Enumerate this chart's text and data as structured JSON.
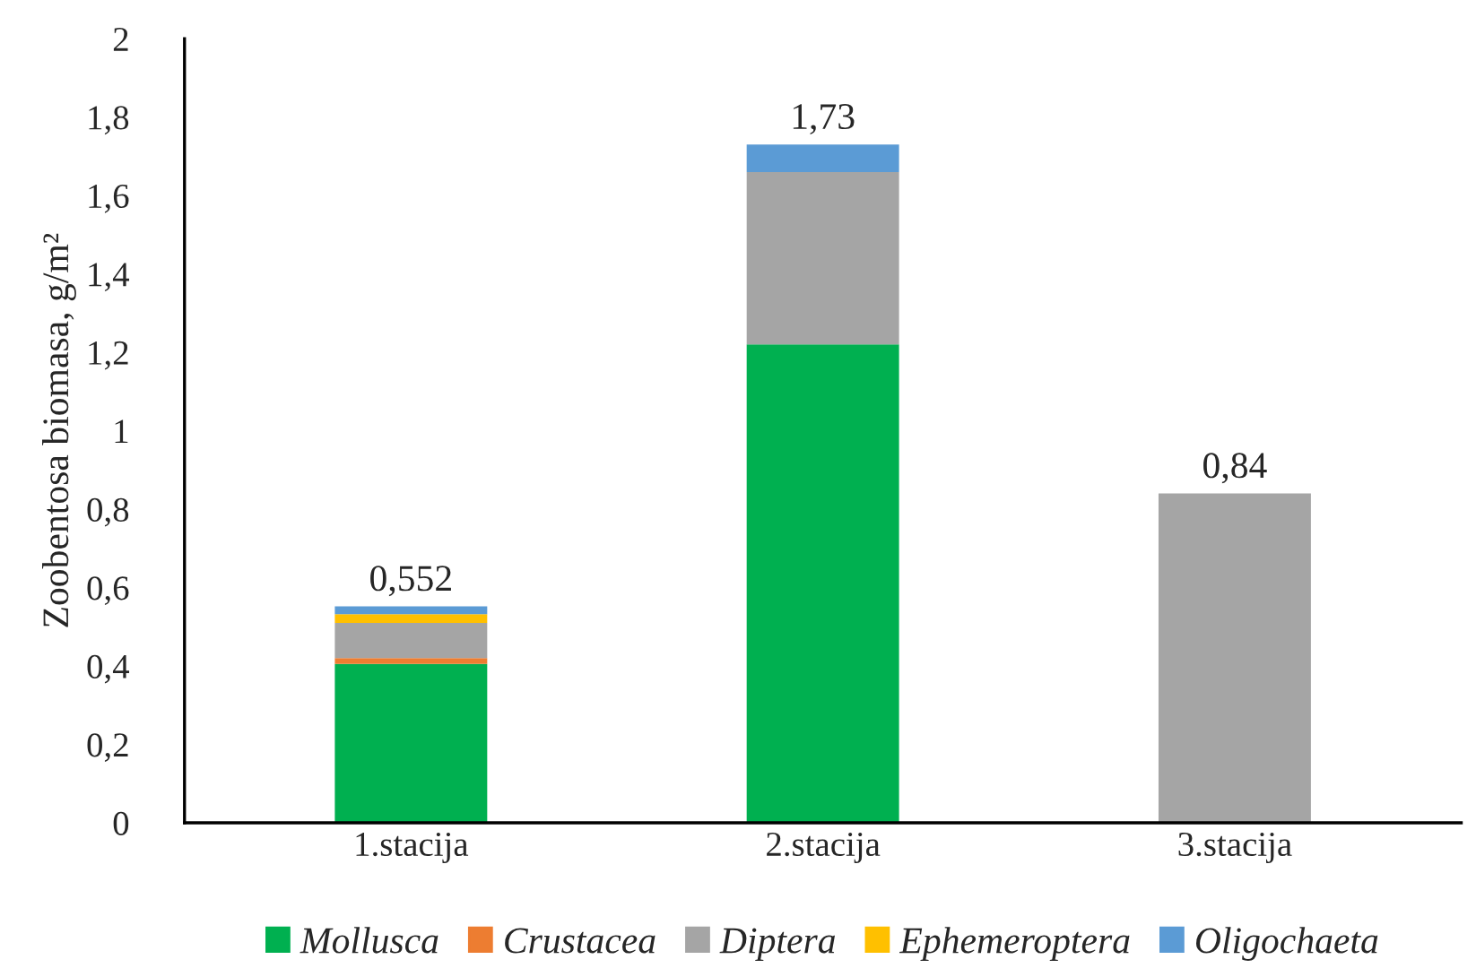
{
  "chart_data": {
    "type": "bar",
    "stacked": true,
    "ylabel": "Zoobentosa biomasa, g/m²",
    "categories": [
      "1.stacija",
      "2.stacija",
      "3.stacija"
    ],
    "series": [
      {
        "name": "Mollusca",
        "color": "#00b050",
        "values": [
          0.405,
          1.22,
          0
        ]
      },
      {
        "name": "Crustacea",
        "color": "#ed7d31",
        "values": [
          0.015,
          0,
          0
        ]
      },
      {
        "name": "Diptera",
        "color": "#a5a5a5",
        "values": [
          0.09,
          0.44,
          0.84
        ]
      },
      {
        "name": "Ephemeroptera",
        "color": "#ffc000",
        "values": [
          0.022,
          0,
          0
        ]
      },
      {
        "name": "Oligochaeta",
        "color": "#5b9bd5",
        "values": [
          0.02,
          0.07,
          0
        ]
      }
    ],
    "totals": [
      "0,552",
      "1,73",
      "0,84"
    ],
    "ylim": [
      0,
      2
    ],
    "yticks": [
      0,
      {
        "value": 0.2,
        "label": "0,2"
      },
      {
        "value": 0.4,
        "label": "0,4"
      },
      {
        "value": 0.6,
        "label": "0,6"
      },
      {
        "value": 0.8,
        "label": "0,8"
      },
      1,
      {
        "value": 1.2,
        "label": "1,2"
      },
      {
        "value": 1.4,
        "label": "1,4"
      },
      {
        "value": 1.6,
        "label": "1,6"
      },
      {
        "value": 1.8,
        "label": "1,8"
      },
      2
    ],
    "grid": false,
    "legend": "bottom"
  }
}
